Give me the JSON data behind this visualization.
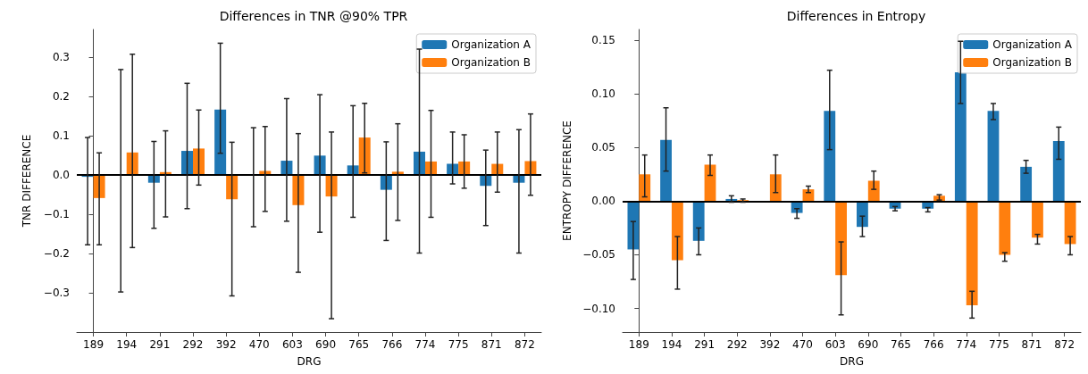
{
  "chart_data": [
    {
      "type": "bar",
      "title": "Differences in TNR @90% TPR",
      "xlabel": "DRG",
      "ylabel": "TNR DIFFERENCE",
      "categories": [
        "189",
        "194",
        "291",
        "292",
        "392",
        "470",
        "603",
        "690",
        "765",
        "766",
        "774",
        "775",
        "871",
        "872"
      ],
      "series": [
        {
          "name": "Organization A",
          "color": "#1f77b4",
          "values": [
            -0.005,
            0.002,
            -0.02,
            0.061,
            0.166,
            0.001,
            0.036,
            0.049,
            0.024,
            -0.038,
            0.059,
            0.028,
            -0.028,
            -0.02
          ],
          "errors": [
            [
              -0.178,
              0.095
            ],
            [
              -0.298,
              0.268
            ],
            [
              -0.136,
              0.085
            ],
            [
              -0.086,
              0.233
            ],
            [
              0.055,
              0.335
            ],
            [
              -0.132,
              0.12
            ],
            [
              -0.118,
              0.194
            ],
            [
              -0.146,
              0.204
            ],
            [
              -0.108,
              0.176
            ],
            [
              -0.167,
              0.084
            ],
            [
              -0.199,
              0.32
            ],
            [
              -0.023,
              0.109
            ],
            [
              -0.129,
              0.063
            ],
            [
              -0.199,
              0.115
            ]
          ]
        },
        {
          "name": "Organization B",
          "color": "#ff7f0e",
          "values": [
            -0.059,
            0.057,
            0.007,
            0.067,
            -0.062,
            0.01,
            -0.077,
            -0.055,
            0.095,
            0.008,
            0.034,
            0.034,
            0.028,
            0.035
          ],
          "errors": [
            [
              -0.178,
              0.056
            ],
            [
              -0.185,
              0.307
            ],
            [
              -0.107,
              0.112
            ],
            [
              -0.026,
              0.165
            ],
            [
              -0.308,
              0.083
            ],
            [
              -0.093,
              0.123
            ],
            [
              -0.248,
              0.105
            ],
            [
              -0.366,
              0.109
            ],
            [
              0.005,
              0.182
            ],
            [
              -0.116,
              0.13
            ],
            [
              -0.108,
              0.164
            ],
            [
              -0.034,
              0.102
            ],
            [
              -0.044,
              0.109
            ],
            [
              -0.052,
              0.155
            ]
          ]
        }
      ],
      "ylim": [
        -0.4,
        0.37
      ],
      "yticks": [
        {
          "value": -0.3,
          "label": "−0.3"
        },
        {
          "value": -0.2,
          "label": "−0.2"
        },
        {
          "value": -0.1,
          "label": "−0.1"
        },
        {
          "value": 0,
          "label": "0.0"
        },
        {
          "value": 0.1,
          "label": "0.1"
        },
        {
          "value": 0.2,
          "label": "0.2"
        },
        {
          "value": 0.3,
          "label": "0.3"
        }
      ],
      "ref_lines": [
        {
          "axis": "y",
          "value": 0,
          "color": "#000000"
        }
      ],
      "grid": false,
      "legend": "top right"
    },
    {
      "type": "bar",
      "title": "Differences in Entropy",
      "xlabel": "DRG",
      "ylabel": "ENTROPY DIFFERENCE",
      "categories": [
        "189",
        "194",
        "291",
        "292",
        "392",
        "470",
        "603",
        "690",
        "765",
        "766",
        "774",
        "775",
        "871",
        "872"
      ],
      "series": [
        {
          "name": "Organization A",
          "color": "#1f77b4",
          "values": [
            -0.045,
            0.057,
            -0.037,
            0.002,
            0,
            -0.011,
            0.084,
            -0.024,
            -0.007,
            -0.007,
            0.12,
            0.084,
            0.032,
            0.056
          ],
          "errors": [
            [
              -0.073,
              -0.019
            ],
            [
              0.028,
              0.087
            ],
            [
              -0.05,
              -0.025
            ],
            [
              -0.001,
              0.005
            ],
            null,
            [
              -0.016,
              -0.007
            ],
            [
              0.048,
              0.122
            ],
            [
              -0.033,
              -0.014
            ],
            [
              -0.009,
              -0.005
            ],
            [
              -0.01,
              -0.006
            ],
            [
              0.091,
              0.149
            ],
            [
              0.076,
              0.091
            ],
            [
              0.026,
              0.038
            ],
            [
              0.039,
              0.069
            ]
          ]
        },
        {
          "name": "Organization B",
          "color": "#ff7f0e",
          "values": [
            0.025,
            -0.055,
            0.034,
            0.001,
            0.025,
            0.011,
            -0.069,
            0.019,
            0,
            0.005,
            -0.097,
            -0.05,
            -0.034,
            -0.04
          ],
          "errors": [
            [
              0.004,
              0.043
            ],
            [
              -0.082,
              -0.033
            ],
            [
              0.024,
              0.043
            ],
            [
              -0.001,
              0.002
            ],
            [
              0.008,
              0.043
            ],
            [
              0.008,
              0.014
            ],
            [
              -0.106,
              -0.038
            ],
            [
              0.011,
              0.028
            ],
            null,
            [
              0.001,
              0.006
            ],
            [
              -0.109,
              -0.084
            ],
            [
              -0.056,
              -0.048
            ],
            [
              -0.04,
              -0.031
            ],
            [
              -0.05,
              -0.033
            ]
          ]
        }
      ],
      "ylim": [
        -0.122,
        0.16
      ],
      "yticks": [
        {
          "value": -0.1,
          "label": "−0.10"
        },
        {
          "value": -0.05,
          "label": "−0.05"
        },
        {
          "value": 0,
          "label": "0.00"
        },
        {
          "value": 0.05,
          "label": "0.05"
        },
        {
          "value": 0.1,
          "label": "0.10"
        },
        {
          "value": 0.15,
          "label": "0.15"
        }
      ],
      "ref_lines": [
        {
          "axis": "y",
          "value": 0,
          "color": "#000000"
        }
      ],
      "grid": false,
      "legend": "top right"
    }
  ]
}
